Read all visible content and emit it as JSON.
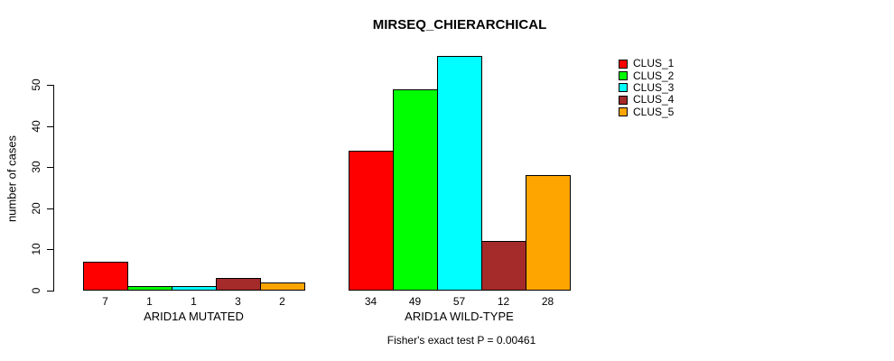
{
  "chart_data": {
    "type": "bar",
    "title": "MIRSEQ_CHIERARCHICAL",
    "ylabel": "number of cases",
    "xlabel": "",
    "ylim": [
      0,
      50
    ],
    "yticks": [
      0,
      10,
      20,
      30,
      40,
      50
    ],
    "grid": false,
    "legend_position": "top-right",
    "show_value_labels": true,
    "categories": [
      "ARID1A MUTATED",
      "ARID1A WILD-TYPE"
    ],
    "series": [
      {
        "name": "CLUS_1",
        "color": "#FF0000",
        "values": [
          7,
          34
        ]
      },
      {
        "name": "CLUS_2",
        "color": "#00FF00",
        "values": [
          1,
          49
        ]
      },
      {
        "name": "CLUS_3",
        "color": "#00FFFF",
        "values": [
          1,
          57
        ]
      },
      {
        "name": "CLUS_4",
        "color": "#A52A2A",
        "values": [
          3,
          12
        ]
      },
      {
        "name": "CLUS_5",
        "color": "#FFA500",
        "values": [
          2,
          28
        ]
      }
    ],
    "caption": "Fisher's exact test P = 0.00461",
    "axis_color": "#000000",
    "background": "#FFFFFF"
  }
}
